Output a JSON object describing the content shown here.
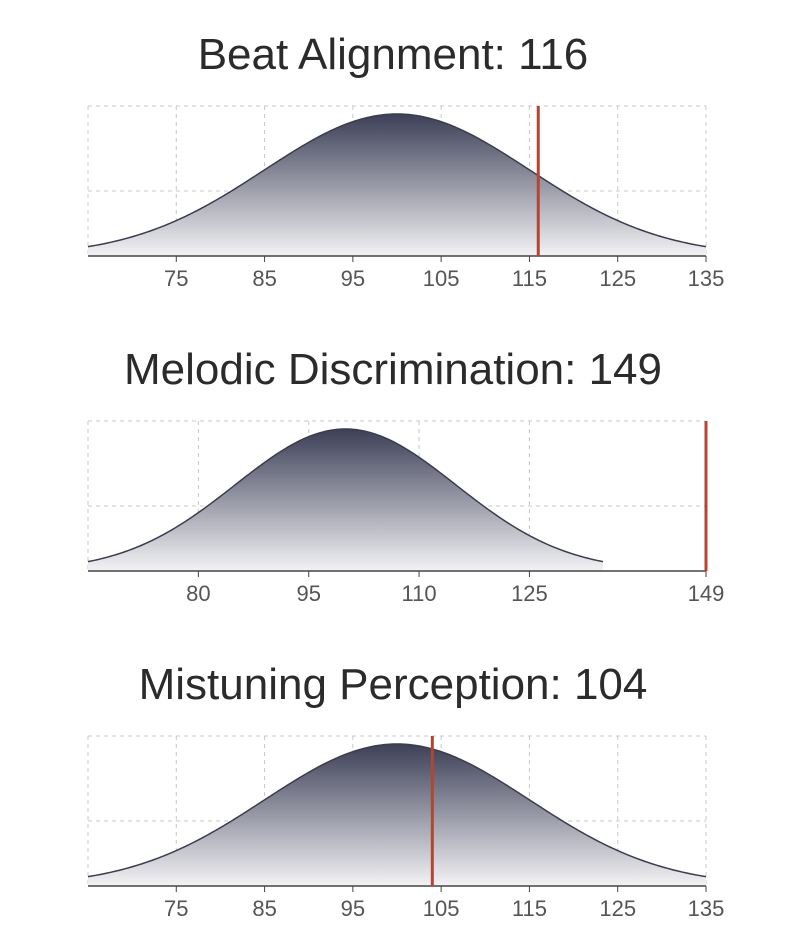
{
  "colors": {
    "curve_top": "#3c3f57",
    "curve_bottom": "#f3f3f5",
    "curve_stroke": "#3a3d52",
    "marker": "#b5452f",
    "grid": "#c8c8c8",
    "axis": "#444444"
  },
  "chart_data": [
    {
      "type": "area",
      "title": "Beat Alignment: 116",
      "xlim": [
        65,
        135
      ],
      "xticks": [
        75,
        85,
        95,
        105,
        115,
        125,
        135
      ],
      "xtick_labels": [
        "75",
        "85",
        "95",
        "105",
        "115",
        "125",
        "135"
      ],
      "distribution": {
        "mean": 100,
        "sd": 15,
        "range": [
          65,
          135
        ]
      },
      "marker": 116,
      "grid": true
    },
    {
      "type": "area",
      "title": "Melodic Discrimination: 149",
      "xlim": [
        65,
        149
      ],
      "xticks": [
        80,
        95,
        110,
        125,
        149
      ],
      "xtick_labels": [
        "80",
        "95",
        "110",
        "125",
        "149"
      ],
      "distribution": {
        "mean": 100,
        "sd": 15,
        "range": [
          65,
          135
        ]
      },
      "marker": 149,
      "grid": true
    },
    {
      "type": "area",
      "title": "Mistuning Perception: 104",
      "xlim": [
        65,
        135
      ],
      "xticks": [
        75,
        85,
        95,
        105,
        115,
        125,
        135
      ],
      "xtick_labels": [
        "75",
        "85",
        "95",
        "105",
        "115",
        "125",
        "135"
      ],
      "distribution": {
        "mean": 100,
        "sd": 15,
        "range": [
          65,
          135
        ]
      },
      "marker": 104,
      "grid": true
    }
  ]
}
